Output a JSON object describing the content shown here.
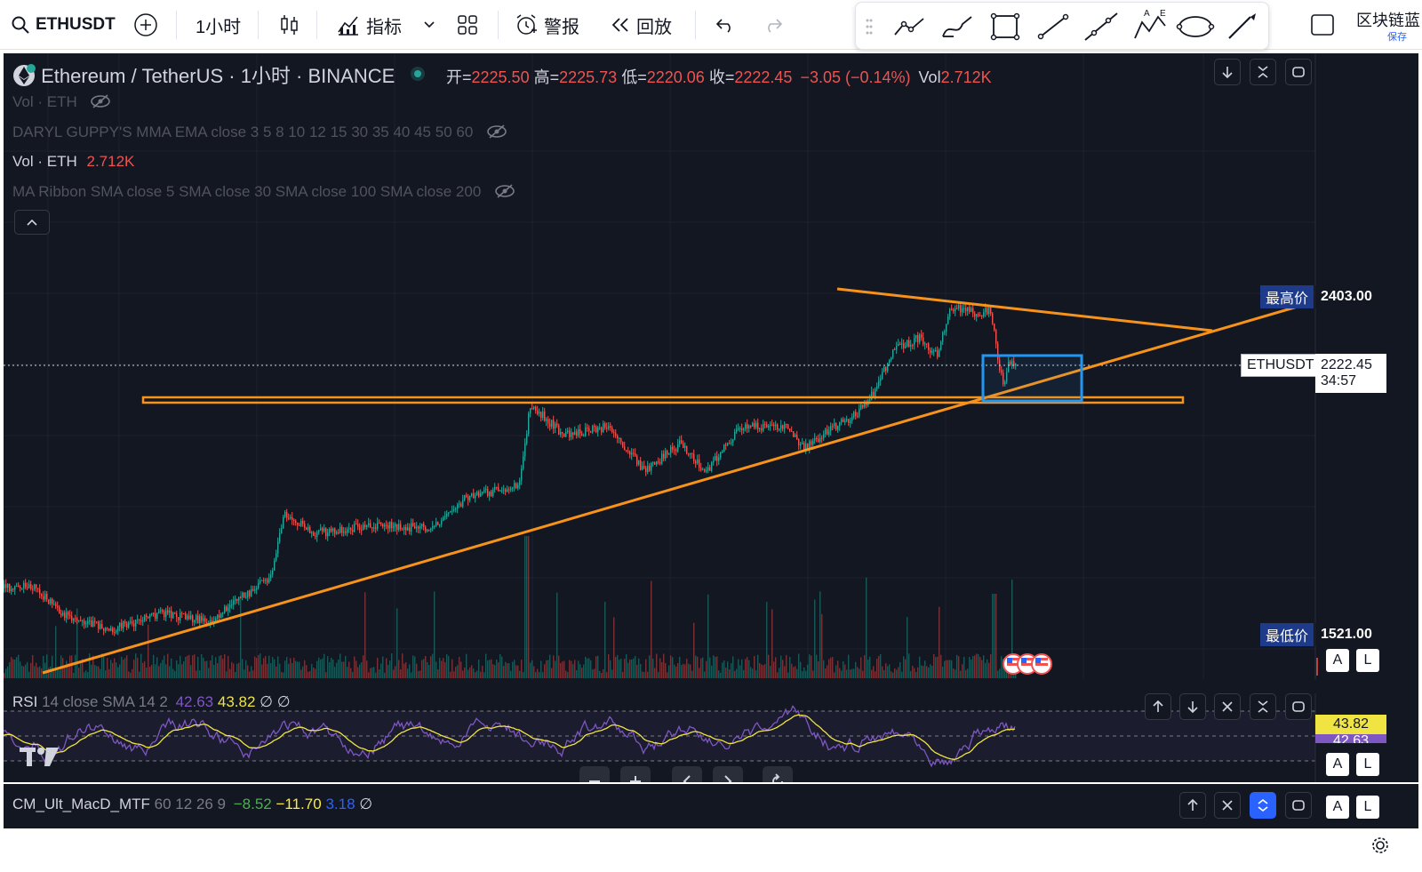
{
  "toolbar": {
    "symbol": "ETHUSDT",
    "interval": "1小时",
    "indicators_label": "指标",
    "alert_label": "警报",
    "replay_label": "回放",
    "right_title": "区块链蓝",
    "save_label": "保存"
  },
  "header": {
    "title": "Ethereum / TetherUS · 1小时 · BINANCE",
    "open_label": "开=",
    "open": "2225.50",
    "high_label": "高=",
    "high": "2225.73",
    "low_label": "低=",
    "low": "2220.06",
    "close_label": "收=",
    "close": "2222.45",
    "change": "−3.05 (−0.14%)",
    "vol_label": "Vol",
    "vol": "2.712K"
  },
  "indicators": {
    "vol_hidden": "Vol · ETH",
    "guppy": "DARYL GUPPY'S MMA EMA close 3 5 8 10 12 15 30 35 40 45 50 60",
    "vol_label": "Vol · ETH",
    "vol_value": "2.712K",
    "ma_ribbon": "MA Ribbon SMA close 5 SMA close 30 SMA close 100 SMA close 200"
  },
  "price_axis": {
    "high_label": "最高价",
    "high_value": "2403.00",
    "symbol_label": "ETHUSDT",
    "last_value": "2222.45",
    "countdown": "34:57",
    "low_label": "最低价",
    "low_value": "1521.00",
    "auto": "A",
    "log": "L"
  },
  "rsi": {
    "name": "RSI",
    "params": "14 close SMA 14 2",
    "rsi_value": "42.63",
    "sma_value": "43.82",
    "null1": "∅",
    "null2": "∅",
    "axis_sma": "43.82",
    "axis_rsi": "42.63"
  },
  "macd": {
    "name": "CM_Ult_MacD_MTF",
    "params": "60 12 26 9",
    "v1": "−8.52",
    "v2": "−11.70",
    "v3": "3.18",
    "null": "∅"
  },
  "colors": {
    "up": "#26a69a",
    "down": "#ef5350",
    "orange": "#f7931a",
    "blue_box": "#2196f3",
    "rsi": "#7e57c2",
    "rsi_ma": "#f0e442",
    "macd_green": "#4caf50",
    "macd_yellow": "#ffeb3b",
    "macd_blue": "#2962ff"
  }
}
